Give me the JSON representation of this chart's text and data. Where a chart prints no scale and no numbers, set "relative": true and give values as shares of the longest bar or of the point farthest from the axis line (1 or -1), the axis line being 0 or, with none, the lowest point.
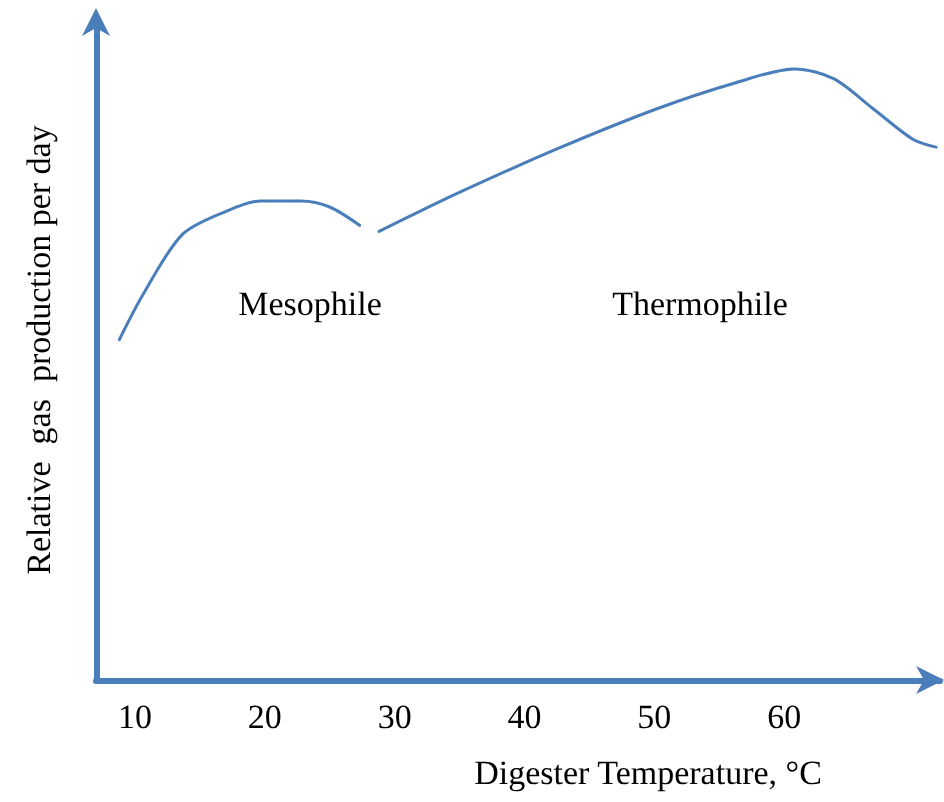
{
  "chart_data": {
    "type": "line",
    "relative": true,
    "xlabel": "Digester Temperature, °C",
    "ylabel": "Relative  gas  production per day",
    "xlim": [
      7,
      72
    ],
    "xticks": [
      10,
      20,
      30,
      40,
      50,
      60
    ],
    "grid": false,
    "marker": "none",
    "line_style": "solid",
    "tick_labels": "x",
    "series": [
      {
        "color": "#4a7ebb",
        "x": [
          8.8,
          10.6,
          13.6,
          16.7,
          19.7,
          22.8,
          25,
          27.3
        ],
        "values": [
          0.557,
          0.63,
          0.728,
          0.764,
          0.784,
          0.784,
          0.774,
          0.744
        ]
      },
      {
        "color": "#4a7ebb",
        "x": [
          28.8,
          34.9,
          42.5,
          50.1,
          56.2,
          60.8,
          63.8,
          66.9,
          69.9,
          71.7
        ],
        "values": [
          0.734,
          0.797,
          0.869,
          0.934,
          0.977,
          1.0,
          0.984,
          0.934,
          0.885,
          0.872
        ]
      }
    ],
    "annotations": [
      "Mesophile",
      "Thermophile"
    ]
  }
}
